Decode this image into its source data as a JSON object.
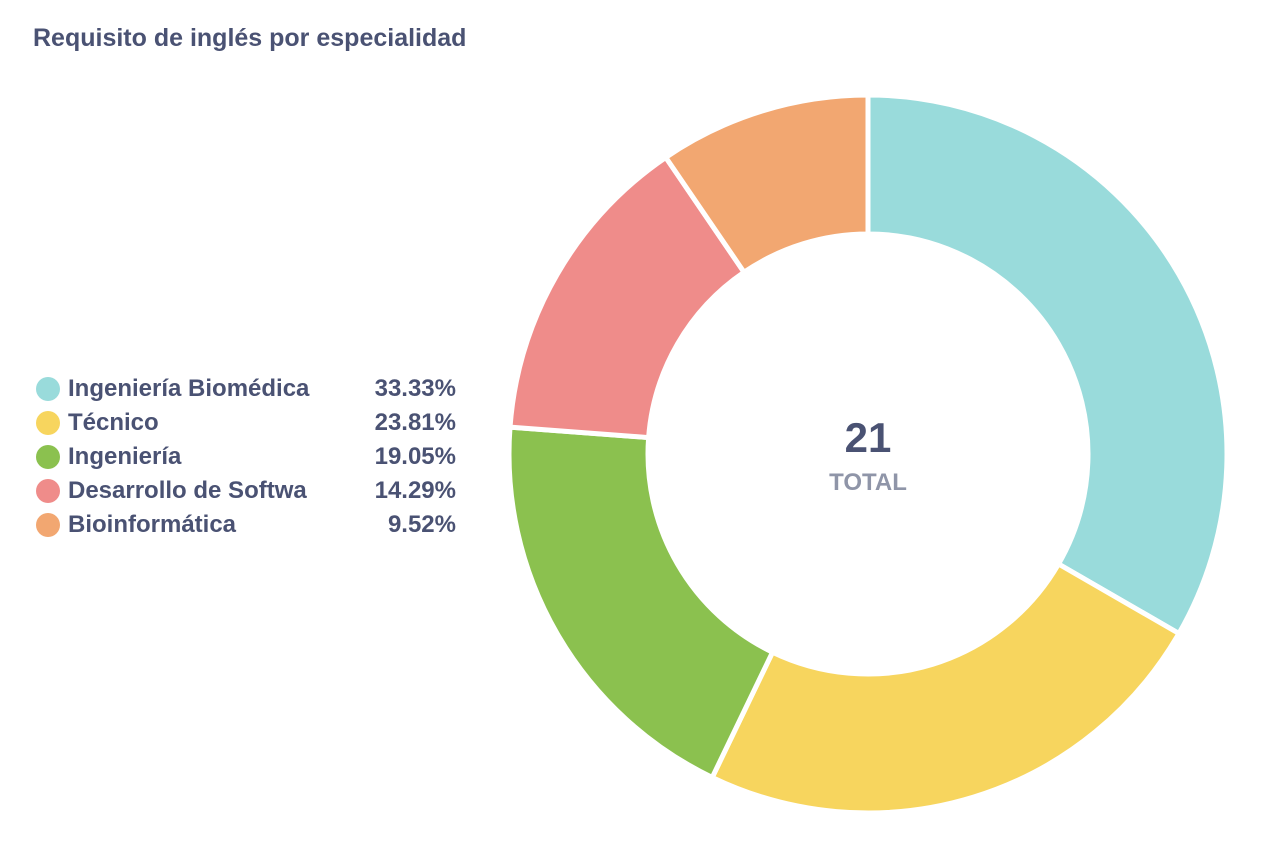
{
  "title": "Requisito de inglés por especialidad",
  "center": {
    "total": "21",
    "label": "TOTAL"
  },
  "chart_data": {
    "type": "pie",
    "title": "Requisito de inglés por especialidad",
    "categories": [
      "Ingeniería Biomédica",
      "Técnico",
      "Ingeniería",
      "Desarrollo de Softwa",
      "Bioinformática"
    ],
    "values": [
      7,
      5,
      4,
      3,
      2
    ],
    "percent_labels": [
      "33.33%",
      "23.81%",
      "19.05%",
      "14.29%",
      "9.52%"
    ],
    "colors": [
      "#99dbdb",
      "#f7d55e",
      "#8bc14f",
      "#ef8c8a",
      "#f2a771"
    ],
    "total": 21,
    "legend_position": "left",
    "style": "donut"
  }
}
